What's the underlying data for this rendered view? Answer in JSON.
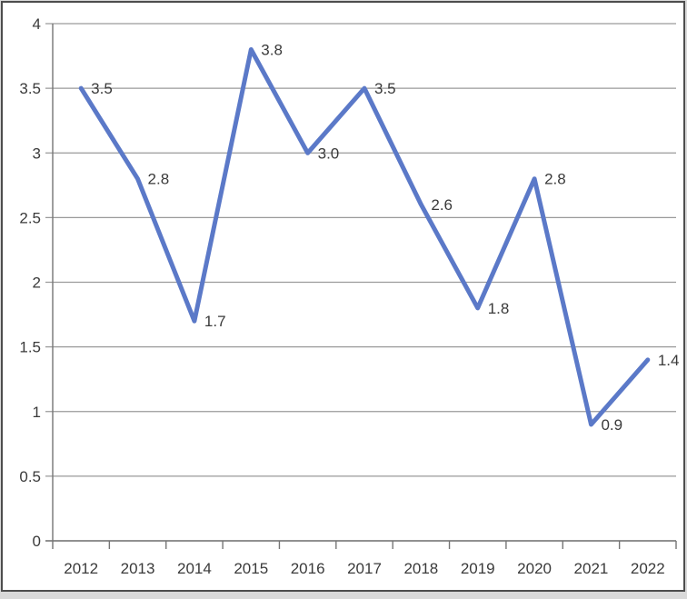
{
  "chart_data": {
    "type": "line",
    "title": "",
    "xlabel": "",
    "ylabel": "",
    "categories": [
      "2012",
      "2013",
      "2014",
      "2015",
      "2016",
      "2017",
      "2018",
      "2019",
      "2020",
      "2021",
      "2022"
    ],
    "values": [
      3.5,
      2.8,
      1.7,
      3.8,
      3.0,
      3.5,
      2.6,
      1.8,
      2.8,
      0.9,
      1.4
    ],
    "point_labels": [
      "3.5",
      "2.8",
      "1.7",
      "3.8",
      "3.0",
      "3.5",
      "2.6",
      "1.8",
      "2.8",
      "0.9",
      "1.4"
    ],
    "ylim": [
      0,
      4
    ],
    "ytick_step": 0.5,
    "ytick_labels": [
      "0",
      "0.5",
      "1",
      "1.5",
      "2",
      "2.5",
      "3",
      "3.5",
      "4"
    ],
    "grid": true,
    "legend": false,
    "colors": {
      "line": "#5b79c8",
      "gridline": "#9a9a9a",
      "axis": "#757575",
      "text": "#3a3a3a",
      "background": "#ffffff",
      "frame_border": "#4d4d4d"
    }
  }
}
